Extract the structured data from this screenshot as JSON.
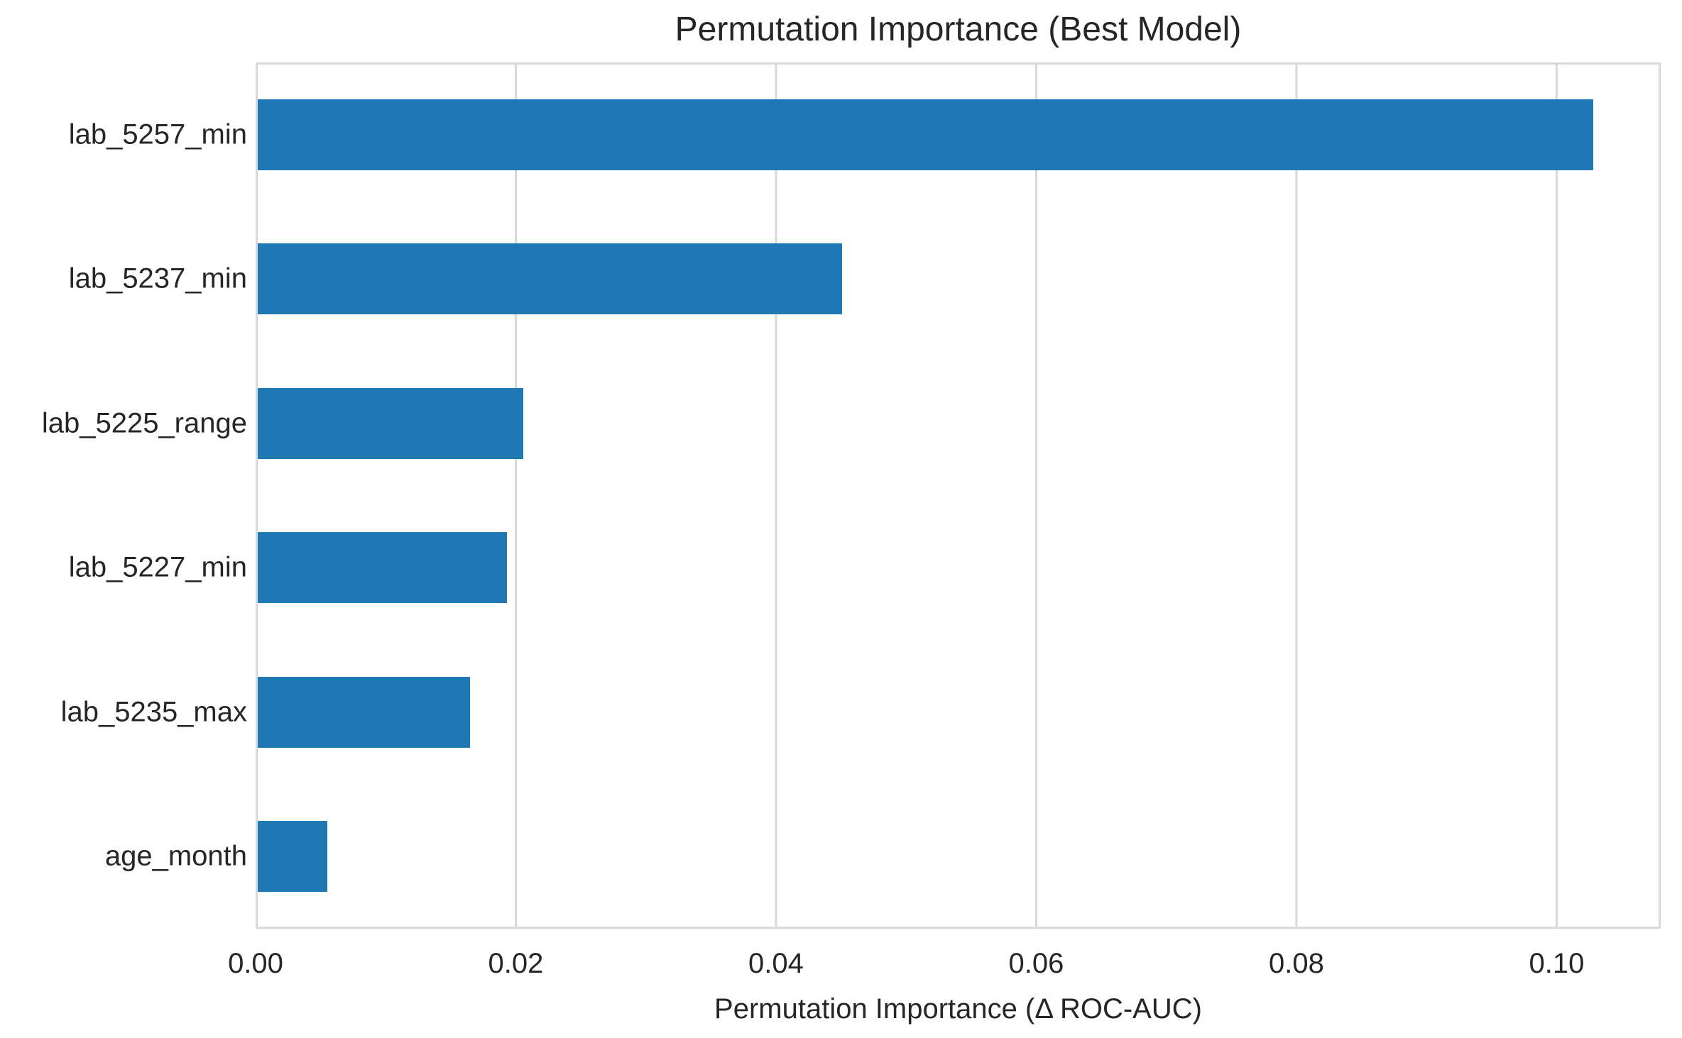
{
  "chart_data": {
    "type": "bar",
    "orientation": "horizontal",
    "title": "Permutation Importance (Best Model)",
    "xlabel": "Permutation Importance (Δ ROC-AUC)",
    "ylabel": "",
    "categories": [
      "lab_5257_min",
      "lab_5237_min",
      "lab_5225_range",
      "lab_5227_min",
      "lab_5235_max",
      "age_month"
    ],
    "values": [
      0.1028,
      0.0451,
      0.0206,
      0.0193,
      0.0165,
      0.0055
    ],
    "xlim": [
      0,
      0.108
    ],
    "xticks": [
      0.0,
      0.02,
      0.04,
      0.06,
      0.08,
      0.1
    ],
    "xtick_labels": [
      "0.00",
      "0.02",
      "0.04",
      "0.06",
      "0.08",
      "0.10"
    ],
    "grid": true,
    "legend_position": "none",
    "colors": {
      "bar": "#1f77b4",
      "grid": "#d9d9d9",
      "text": "#262626",
      "background": "#ffffff"
    }
  }
}
